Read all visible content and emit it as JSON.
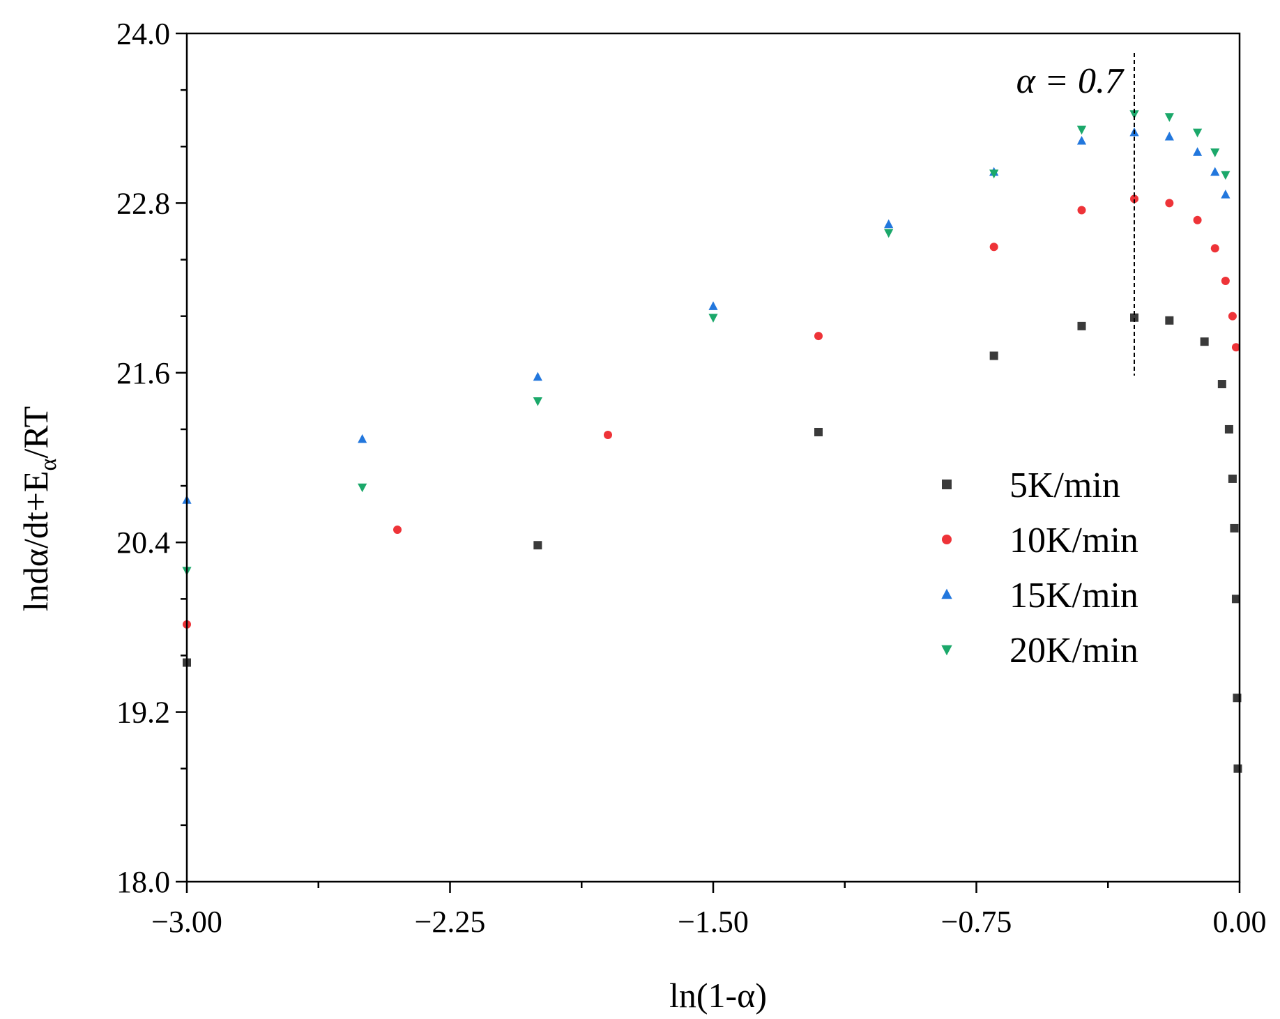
{
  "chart_data": {
    "type": "scatter",
    "title": "",
    "xlabel": "ln(1-α)",
    "ylabel_main": "lndα/dt+E",
    "ylabel_sub": "α",
    "ylabel_tail": "/RT",
    "xlim": [
      -3.0,
      0.0
    ],
    "ylim": [
      18.0,
      24.0
    ],
    "xticks": [
      -3.0,
      -2.25,
      -1.5,
      -0.75,
      0.0
    ],
    "xtick_labels": [
      "−3.00",
      "−2.25",
      "−1.50",
      "−0.75",
      "0.00"
    ],
    "yticks": [
      18.0,
      19.2,
      20.4,
      21.6,
      22.8,
      24.0
    ],
    "ytick_labels": [
      "18.0",
      "19.2",
      "20.4",
      "21.6",
      "22.8",
      "24.0"
    ],
    "grid": false,
    "legend_position": "right-middle",
    "annotation": {
      "text": "α = 0.7",
      "x": -0.3
    },
    "series": [
      {
        "name": "5K/min",
        "marker": "square",
        "color": "#3a3a3a",
        "x": [
          -3.0,
          -2.0,
          -1.2,
          -0.7,
          -0.45,
          -0.3,
          -0.2,
          -0.1,
          -0.05,
          -0.03,
          -0.02,
          -0.015,
          -0.01,
          -0.007,
          -0.005
        ],
        "y": [
          19.55,
          20.38,
          21.18,
          21.72,
          21.93,
          21.99,
          21.97,
          21.82,
          21.52,
          21.2,
          20.85,
          20.5,
          20.0,
          19.3,
          18.8
        ]
      },
      {
        "name": "10K/min",
        "marker": "circle",
        "color": "#ee3338",
        "x": [
          -3.0,
          -2.4,
          -1.8,
          -1.2,
          -0.7,
          -0.45,
          -0.3,
          -0.2,
          -0.12,
          -0.07,
          -0.04,
          -0.02,
          -0.01
        ],
        "y": [
          19.82,
          20.49,
          21.16,
          21.86,
          22.49,
          22.75,
          22.83,
          22.8,
          22.68,
          22.48,
          22.25,
          22.0,
          21.78
        ]
      },
      {
        "name": "15K/min",
        "marker": "triangle-up",
        "color": "#2277dd",
        "x": [
          -3.0,
          -2.5,
          -2.0,
          -1.5,
          -1.0,
          -0.7,
          -0.45,
          -0.3,
          -0.2,
          -0.12,
          -0.07,
          -0.04
        ],
        "y": [
          20.7,
          21.13,
          21.57,
          22.07,
          22.65,
          23.02,
          23.24,
          23.3,
          23.27,
          23.16,
          23.02,
          22.86
        ]
      },
      {
        "name": "20K/min",
        "marker": "triangle-down",
        "color": "#1ba86a",
        "x": [
          -3.0,
          -2.5,
          -2.0,
          -1.5,
          -1.0,
          -0.7,
          -0.45,
          -0.3,
          -0.2,
          -0.12,
          -0.07,
          -0.04
        ],
        "y": [
          20.2,
          20.79,
          21.4,
          21.99,
          22.59,
          23.01,
          23.32,
          23.43,
          23.41,
          23.3,
          23.16,
          23.0
        ]
      }
    ]
  }
}
